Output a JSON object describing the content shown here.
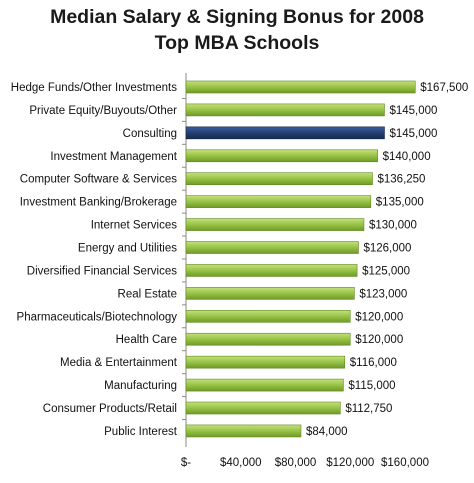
{
  "chart_data": {
    "type": "bar",
    "orientation": "horizontal",
    "title": [
      "Median Salary & Signing Bonus for 2008",
      "Top MBA Schools"
    ],
    "categories": [
      "Hedge Funds/Other Investments",
      "Private Equity/Buyouts/Other",
      "Consulting",
      "Investment Management",
      "Computer Software & Services",
      "Investment Banking/Brokerage",
      "Internet Services",
      "Energy and Utilities",
      "Diversified Financial Services",
      "Real Estate",
      "Pharmaceuticals/Biotechnology",
      "Health Care",
      "Media & Entertainment",
      "Manufacturing",
      "Consumer Products/Retail",
      "Public Interest"
    ],
    "values": [
      167500,
      145000,
      145000,
      140000,
      136250,
      135000,
      130000,
      126000,
      125000,
      123000,
      120000,
      120000,
      116000,
      115000,
      112750,
      84000
    ],
    "value_labels": [
      "$167,500",
      "$145,000",
      "$145,000",
      "$140,000",
      "$136,250",
      "$135,000",
      "$130,000",
      "$126,000",
      "$125,000",
      "$123,000",
      "$120,000",
      "$120,000",
      "$116,000",
      "$115,000",
      "$112,750",
      "$84,000"
    ],
    "highlight_index": 2,
    "xlim": [
      0,
      160000
    ],
    "x_ticks": [
      0,
      40000,
      80000,
      120000,
      160000
    ],
    "x_tick_labels": [
      "$-",
      "$40,000",
      "$80,000",
      "$120,000",
      "$160,000"
    ],
    "grid": false,
    "legend": "none",
    "colors": {
      "bar": "#8dbb3c",
      "bar_highlight": "#1f3b6b",
      "bar_shade": "#5f8a1f"
    }
  }
}
